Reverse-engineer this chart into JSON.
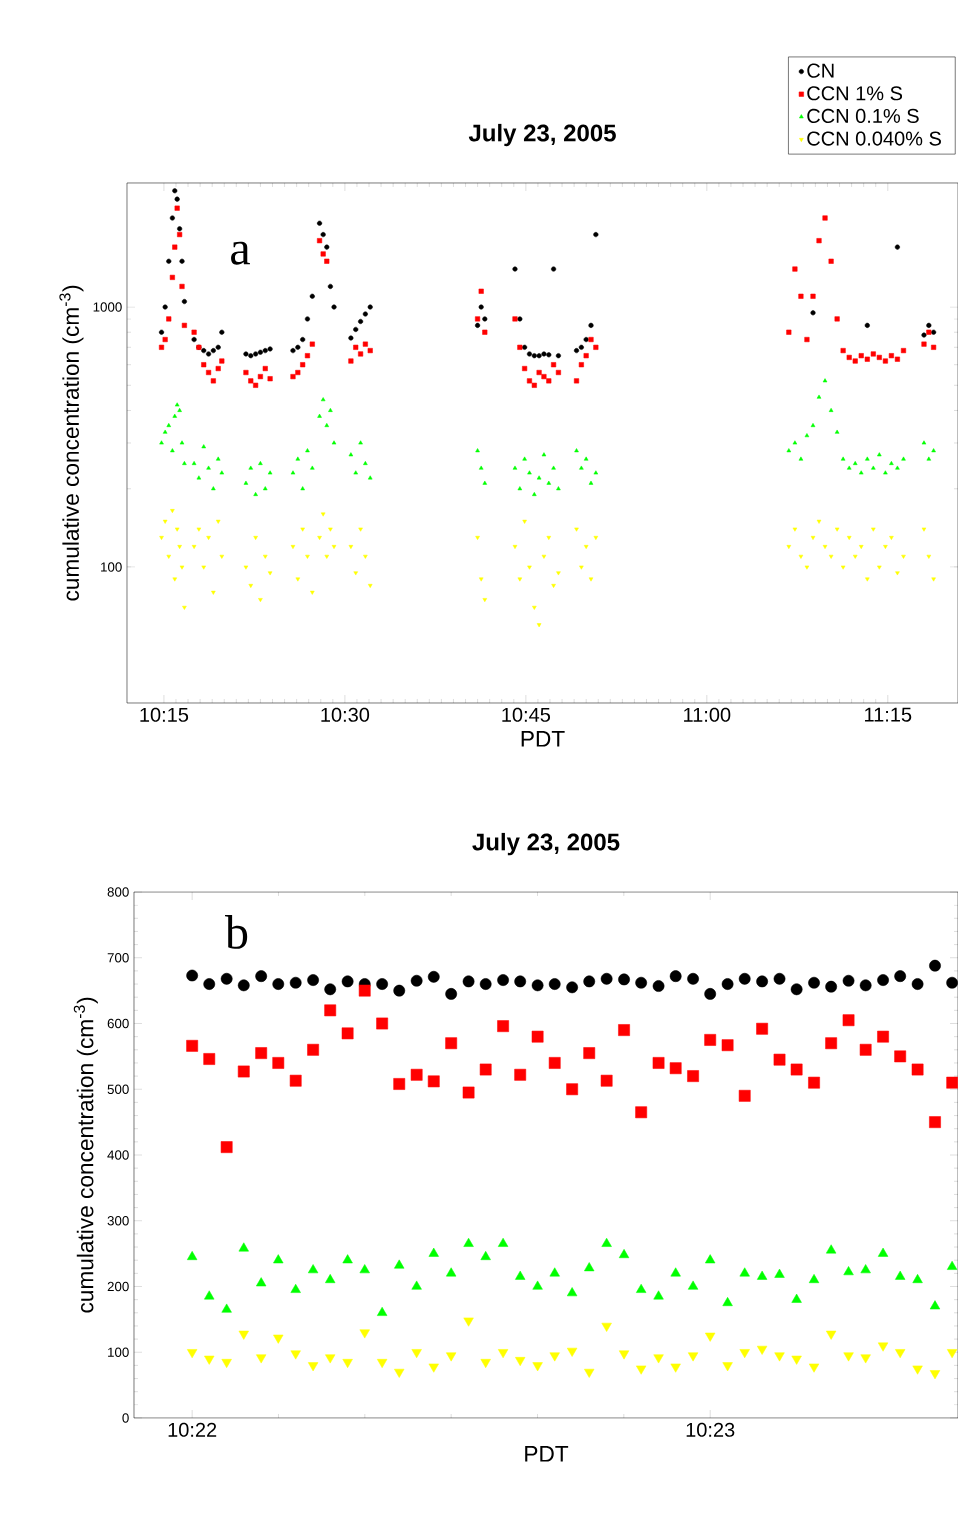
{
  "chart_data": [
    {
      "type": "scatter",
      "title": "July 23, 2005",
      "xlabel": "PDT",
      "ylabel": "cumulative concentration (cm$^{-3}$)",
      "annotations": [
        "a"
      ],
      "log": "y",
      "legend": "top right",
      "xlim": [
        10.199,
        11.347
      ],
      "xticks": [
        {
          "value": 10.25,
          "label": "10:15"
        },
        {
          "value": 10.5,
          "label": "10:30"
        },
        {
          "value": 10.75,
          "label": "10:45"
        },
        {
          "value": 11.0,
          "label": "11:00"
        },
        {
          "value": 11.25,
          "label": "11:15"
        }
      ],
      "ylim": [
        30,
        3000
      ],
      "yticks": [
        100,
        1000
      ],
      "x": [
        10.2467,
        10.2517,
        10.2567,
        10.2617,
        10.265,
        10.2683,
        10.2717,
        10.275,
        10.2783,
        10.2917,
        10.2983,
        10.305,
        10.3117,
        10.3183,
        10.325,
        10.33,
        10.3633,
        10.37,
        10.3767,
        10.3833,
        10.39,
        10.3967,
        10.4283,
        10.435,
        10.4417,
        10.4483,
        10.455,
        10.465,
        10.47,
        10.475,
        10.48,
        10.485,
        10.5083,
        10.515,
        10.5217,
        10.5283,
        10.535,
        10.6833,
        10.6883,
        10.6933,
        10.735,
        10.7417,
        10.7483,
        10.755,
        10.7617,
        10.7683,
        10.775,
        10.7817,
        10.7883,
        10.795,
        10.82,
        10.8267,
        10.8333,
        10.84,
        10.8467,
        11.1133,
        11.1217,
        11.13,
        11.1383,
        11.1467,
        11.155,
        11.1633,
        11.1717,
        11.18,
        11.1883,
        11.1967,
        11.205,
        11.2133,
        11.2217,
        11.23,
        11.2383,
        11.2467,
        11.255,
        11.2633,
        11.2717,
        11.3,
        11.3067,
        11.3133
      ],
      "series": [
        {
          "name": "CN",
          "color": "#000000",
          "marker": "circle",
          "values": [
            800,
            1000,
            1500,
            2200,
            2800,
            2600,
            2000,
            1500,
            1050,
            750,
            700,
            680,
            660,
            680,
            700,
            800,
            660,
            650,
            660,
            670,
            680,
            690,
            680,
            700,
            750,
            900,
            1100,
            2100,
            1900,
            1700,
            1200,
            1000,
            760,
            820,
            880,
            940,
            1000,
            850,
            1000,
            900,
            1400,
            900,
            700,
            660,
            650,
            650,
            660,
            655,
            1400,
            650,
            680,
            700,
            750,
            850,
            1900,
            null,
            null,
            null,
            null,
            950,
            null,
            null,
            null,
            null,
            null,
            null,
            null,
            null,
            850,
            null,
            null,
            null,
            null,
            1700,
            null,
            780,
            850,
            800
          ]
        },
        {
          "name": "CCN 1% S",
          "color": "#ff0000",
          "marker": "square",
          "values": [
            700,
            750,
            900,
            1300,
            1700,
            2400,
            1900,
            1200,
            850,
            800,
            700,
            600,
            560,
            520,
            580,
            620,
            560,
            520,
            500,
            540,
            580,
            530,
            540,
            560,
            600,
            650,
            720,
            1800,
            1600,
            1500,
            null,
            null,
            620,
            700,
            660,
            720,
            680,
            900,
            1150,
            800,
            900,
            700,
            580,
            520,
            500,
            560,
            540,
            520,
            600,
            560,
            520,
            600,
            650,
            750,
            700,
            800,
            1400,
            1100,
            750,
            1100,
            1800,
            2200,
            1500,
            900,
            680,
            640,
            620,
            650,
            630,
            660,
            640,
            620,
            650,
            630,
            680,
            720,
            800,
            700
          ]
        },
        {
          "name": "CCN 0.1% S",
          "color": "#00ff00",
          "marker": "triangle",
          "values": [
            300,
            330,
            350,
            280,
            380,
            420,
            400,
            300,
            250,
            250,
            220,
            290,
            240,
            200,
            260,
            230,
            210,
            240,
            190,
            250,
            200,
            230,
            230,
            260,
            200,
            280,
            240,
            380,
            440,
            350,
            400,
            300,
            270,
            230,
            300,
            250,
            220,
            280,
            240,
            210,
            240,
            200,
            260,
            230,
            190,
            220,
            270,
            210,
            240,
            200,
            280,
            240,
            260,
            210,
            230,
            280,
            300,
            260,
            320,
            350,
            450,
            520,
            400,
            330,
            260,
            240,
            250,
            230,
            260,
            240,
            270,
            230,
            250,
            240,
            260,
            300,
            260,
            280
          ]
        },
        {
          "name": "CCN 0.040% S",
          "color": "#ffff00",
          "marker": "triangle-down",
          "values": [
            130,
            150,
            110,
            165,
            90,
            140,
            120,
            100,
            70,
            120,
            140,
            100,
            130,
            80,
            150,
            110,
            100,
            85,
            130,
            75,
            110,
            95,
            120,
            90,
            140,
            110,
            80,
            130,
            160,
            110,
            140,
            120,
            120,
            95,
            140,
            110,
            85,
            130,
            90,
            75,
            120,
            90,
            150,
            100,
            70,
            60,
            110,
            130,
            85,
            95,
            140,
            100,
            120,
            90,
            130,
            120,
            140,
            110,
            100,
            130,
            150,
            120,
            110,
            140,
            100,
            130,
            110,
            120,
            90,
            140,
            100,
            120,
            130,
            95,
            110,
            140,
            110,
            90
          ]
        }
      ]
    },
    {
      "type": "scatter",
      "title": "July 23, 2005",
      "xlabel": "PDT",
      "ylabel": "cumulative concentration (cm$^{-3}$)",
      "annotations": [
        "b"
      ],
      "xlim": [
        10.3648,
        10.3913
      ],
      "xticks": [
        {
          "value": 10.36667,
          "label": "10:22"
        },
        {
          "value": 10.38333,
          "label": "10:23"
        }
      ],
      "ylim": [
        0,
        800
      ],
      "yticks": [
        0,
        100,
        200,
        300,
        400,
        500,
        600,
        700,
        800
      ],
      "x": [
        10.36667,
        10.36722,
        10.36778,
        10.36833,
        10.36889,
        10.36944,
        10.37,
        10.37056,
        10.37111,
        10.37167,
        10.37222,
        10.37278,
        10.37333,
        10.37389,
        10.37444,
        10.375,
        10.37556,
        10.37611,
        10.37667,
        10.37722,
        10.37778,
        10.37833,
        10.37889,
        10.37944,
        10.38,
        10.38056,
        10.38111,
        10.38167,
        10.38222,
        10.38278,
        10.38333,
        10.38389,
        10.38444,
        10.385,
        10.38556,
        10.38611,
        10.38667,
        10.38722,
        10.38778,
        10.38833,
        10.38889,
        10.38944,
        10.39,
        10.39056,
        10.39111
      ],
      "series": [
        {
          "color": "#000000",
          "marker": "circle",
          "values": [
            673,
            660,
            668,
            658,
            672,
            660,
            662,
            666,
            652,
            664,
            660,
            660,
            650,
            665,
            671,
            645,
            664,
            660,
            666,
            664,
            658,
            660,
            655,
            664,
            668,
            667,
            662,
            657,
            672,
            668,
            645,
            660,
            668,
            664,
            668,
            652,
            662,
            656,
            665,
            658,
            666,
            672,
            660,
            688,
            662
          ]
        },
        {
          "color": "#ff0000",
          "marker": "square",
          "values": [
            566,
            546,
            412,
            527,
            555,
            540,
            513,
            560,
            620,
            585,
            650,
            600,
            508,
            522,
            512,
            570,
            495,
            530,
            596,
            522,
            580,
            540,
            500,
            555,
            513,
            590,
            465,
            540,
            532,
            520,
            575,
            567,
            490,
            592,
            545,
            530,
            510,
            570,
            605,
            560,
            580,
            550,
            530,
            450,
            510
          ]
        },
        {
          "color": "#00ff00",
          "marker": "triangle",
          "values": [
            245,
            185,
            165,
            258,
            205,
            240,
            195,
            225,
            210,
            240,
            225,
            160,
            232,
            200,
            250,
            220,
            265,
            245,
            265,
            215,
            200,
            220,
            190,
            228,
            265,
            248,
            195,
            185,
            220,
            200,
            240,
            175,
            220,
            215,
            218,
            180,
            210,
            255,
            222,
            225,
            250,
            215,
            210,
            170,
            230
          ]
        },
        {
          "color": "#ffff00",
          "marker": "triangle-down",
          "values": [
            100,
            90,
            85,
            128,
            92,
            122,
            98,
            80,
            92,
            85,
            130,
            85,
            70,
            100,
            78,
            95,
            148,
            85,
            100,
            88,
            80,
            95,
            102,
            70,
            140,
            98,
            75,
            92,
            78,
            95,
            125,
            80,
            100,
            105,
            95,
            90,
            78,
            128,
            95,
            92,
            110,
            100,
            75,
            68,
            100
          ]
        }
      ]
    }
  ]
}
